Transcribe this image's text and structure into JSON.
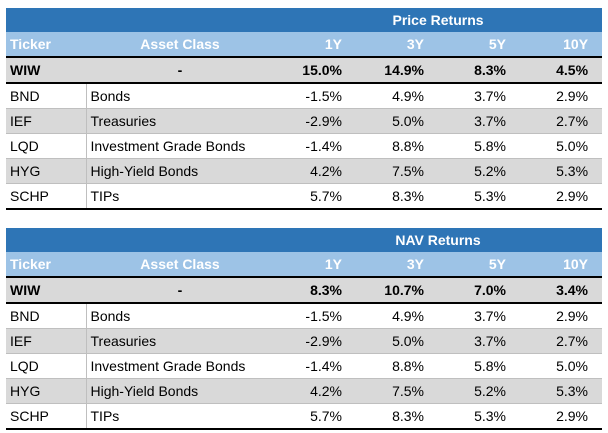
{
  "columns": {
    "ticker": "Ticker",
    "asset_class": "Asset Class",
    "y1": "1Y",
    "y3": "3Y",
    "y5": "5Y",
    "y10": "10Y"
  },
  "price_returns": {
    "title": "Price Returns",
    "fund": {
      "ticker": "WIW",
      "asset_class": "-",
      "y1": "15.0%",
      "y3": "14.9%",
      "y5": "8.3%",
      "y10": "4.5%"
    },
    "rows": [
      {
        "ticker": "BND",
        "asset_class": "Bonds",
        "y1": "-1.5%",
        "y3": "4.9%",
        "y5": "3.7%",
        "y10": "2.9%"
      },
      {
        "ticker": "IEF",
        "asset_class": "Treasuries",
        "y1": "-2.9%",
        "y3": "5.0%",
        "y5": "3.7%",
        "y10": "2.7%"
      },
      {
        "ticker": "LQD",
        "asset_class": "Investment Grade Bonds",
        "y1": "-1.4%",
        "y3": "8.8%",
        "y5": "5.8%",
        "y10": "5.0%"
      },
      {
        "ticker": "HYG",
        "asset_class": "High-Yield Bonds",
        "y1": "4.2%",
        "y3": "7.5%",
        "y5": "5.2%",
        "y10": "5.3%"
      },
      {
        "ticker": "SCHP",
        "asset_class": "TIPs",
        "y1": "5.7%",
        "y3": "8.3%",
        "y5": "5.3%",
        "y10": "2.9%"
      }
    ]
  },
  "nav_returns": {
    "title": "NAV Returns",
    "fund": {
      "ticker": "WIW",
      "asset_class": "-",
      "y1": "8.3%",
      "y3": "10.7%",
      "y5": "7.0%",
      "y10": "3.4%"
    },
    "rows": [
      {
        "ticker": "BND",
        "asset_class": "Bonds",
        "y1": "-1.5%",
        "y3": "4.9%",
        "y5": "3.7%",
        "y10": "2.9%"
      },
      {
        "ticker": "IEF",
        "asset_class": "Treasuries",
        "y1": "-2.9%",
        "y3": "5.0%",
        "y5": "3.7%",
        "y10": "2.7%"
      },
      {
        "ticker": "LQD",
        "asset_class": "Investment Grade Bonds",
        "y1": "-1.4%",
        "y3": "8.8%",
        "y5": "5.8%",
        "y10": "5.0%"
      },
      {
        "ticker": "HYG",
        "asset_class": "High-Yield Bonds",
        "y1": "4.2%",
        "y3": "7.5%",
        "y5": "5.2%",
        "y10": "5.3%"
      },
      {
        "ticker": "SCHP",
        "asset_class": "TIPs",
        "y1": "5.7%",
        "y3": "8.3%",
        "y5": "5.3%",
        "y10": "2.9%"
      }
    ]
  },
  "colors": {
    "group_header_bg": "#2e75b6",
    "column_header_bg": "#9dc3e6",
    "shaded_row_bg": "#d9d9d9",
    "header_text": "#ffffff"
  }
}
